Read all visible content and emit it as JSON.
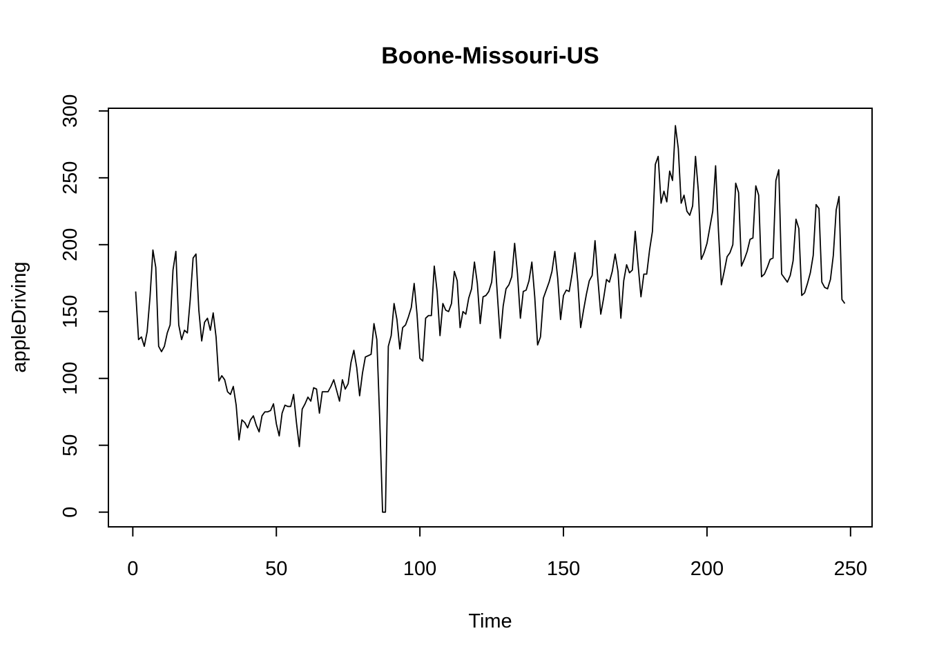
{
  "chart_data": {
    "type": "line",
    "title": "Boone-Missouri-US",
    "xlabel": "Time",
    "ylabel": "appleDriving",
    "xlim": [
      -8.5,
      257.5
    ],
    "ylim": [
      -11,
      302
    ],
    "xticks": [
      0,
      50,
      100,
      150,
      200,
      250
    ],
    "yticks": [
      0,
      50,
      100,
      150,
      200,
      250,
      300
    ],
    "xtick_labels": [
      "0",
      "50",
      "100",
      "150",
      "200",
      "250"
    ],
    "ytick_labels": [
      "0",
      "50",
      "100",
      "150",
      "200",
      "250",
      "300"
    ],
    "grid": false,
    "line_color": "#000000",
    "x_start": 1,
    "values": [
      165,
      129,
      131,
      124,
      135,
      161,
      196,
      183,
      124,
      120,
      124,
      134,
      140,
      181,
      195,
      140,
      129,
      136,
      134,
      159,
      190,
      193,
      151,
      128,
      142,
      145,
      136,
      149,
      131,
      98,
      102,
      99,
      90,
      88,
      94,
      80,
      54,
      69,
      67,
      63,
      69,
      72,
      65,
      60,
      72,
      75,
      75,
      76,
      81,
      66,
      57,
      74,
      80,
      79,
      79,
      88,
      67,
      49,
      77,
      81,
      86,
      83,
      93,
      92,
      74,
      90,
      90,
      90,
      94,
      99,
      91,
      83,
      99,
      92,
      96,
      112,
      121,
      108,
      87,
      104,
      116,
      117,
      118,
      141,
      129,
      70,
      0,
      0,
      124,
      132,
      156,
      144,
      122,
      138,
      140,
      146,
      153,
      171,
      148,
      115,
      113,
      145,
      147,
      147,
      184,
      165,
      132,
      156,
      151,
      150,
      156,
      180,
      173,
      138,
      150,
      148,
      160,
      167,
      187,
      171,
      141,
      161,
      162,
      165,
      172,
      195,
      162,
      130,
      154,
      167,
      170,
      176,
      201,
      178,
      145,
      165,
      166,
      173,
      187,
      161,
      125,
      131,
      160,
      166,
      172,
      180,
      195,
      175,
      144,
      162,
      166,
      165,
      178,
      194,
      172,
      138,
      151,
      163,
      173,
      177,
      203,
      174,
      148,
      160,
      174,
      172,
      180,
      193,
      180,
      145,
      173,
      185,
      179,
      181,
      210,
      185,
      161,
      178,
      178,
      196,
      210,
      260,
      266,
      231,
      240,
      232,
      255,
      248,
      289,
      272,
      231,
      237,
      225,
      222,
      229,
      266,
      240,
      189,
      194,
      201,
      213,
      225,
      259,
      210,
      170,
      180,
      191,
      194,
      200,
      246,
      239,
      184,
      189,
      195,
      204,
      205,
      244,
      237,
      176,
      178,
      183,
      189,
      190,
      248,
      256,
      178,
      175,
      172,
      177,
      188,
      219,
      212,
      162,
      164,
      171,
      179,
      192,
      230,
      227,
      172,
      168,
      167,
      174,
      192,
      226,
      236,
      159,
      156
    ]
  }
}
